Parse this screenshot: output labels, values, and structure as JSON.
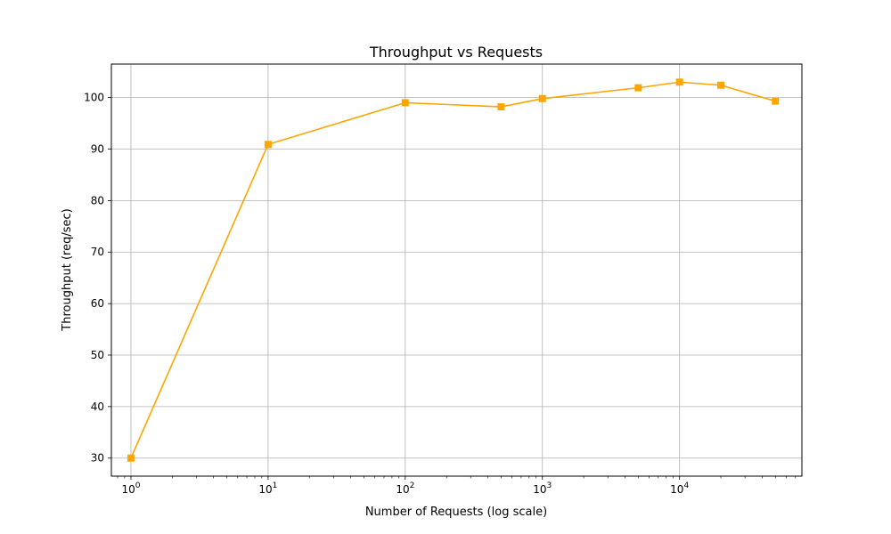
{
  "chart_data": {
    "type": "line",
    "title": "Throughput vs Requests",
    "xlabel": "Number of Requests (log scale)",
    "ylabel": "Throughput (req/sec)",
    "x_scale": "log",
    "xlim": [
      0.72,
      78000
    ],
    "ylim": [
      26.5,
      106.5
    ],
    "x_ticks": [
      {
        "value": 1,
        "label_base": "10",
        "label_exp": "0"
      },
      {
        "value": 10,
        "label_base": "10",
        "label_exp": "1"
      },
      {
        "value": 100,
        "label_base": "10",
        "label_exp": "2"
      },
      {
        "value": 1000,
        "label_base": "10",
        "label_exp": "3"
      },
      {
        "value": 10000,
        "label_base": "10",
        "label_exp": "4"
      }
    ],
    "y_ticks": [
      30,
      40,
      50,
      60,
      70,
      80,
      90,
      100
    ],
    "grid": true,
    "marker": "square",
    "color": "#FFA500",
    "series": [
      {
        "x": [
          1,
          10,
          100,
          500,
          1000,
          5000,
          10000,
          20000,
          50000
        ],
        "y": [
          30.0,
          90.9,
          99.0,
          98.2,
          99.8,
          101.9,
          103.0,
          102.4,
          99.3
        ]
      }
    ]
  }
}
